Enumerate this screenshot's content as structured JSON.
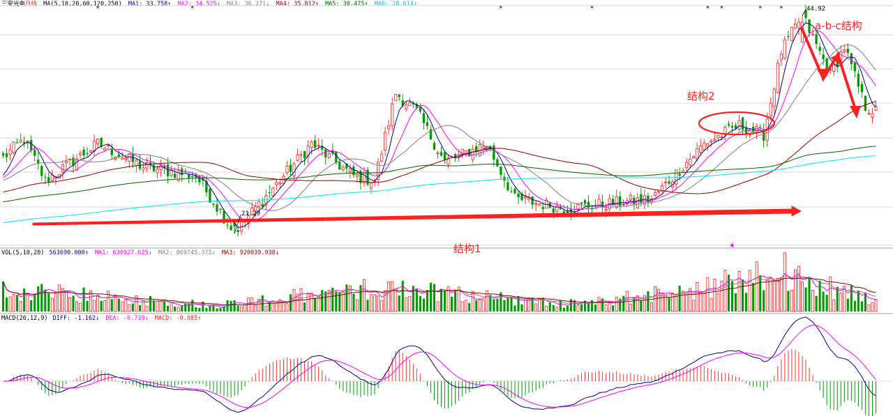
{
  "colors": {
    "up": "#ff3030",
    "down": "#009900",
    "ma1": "#00008b",
    "ma2": "#ff00ff",
    "ma3": "#808080",
    "ma4": "#8b0000",
    "ma5": "#006400",
    "ma6": "#00e5ee",
    "diff": "#00008b",
    "dea": "#ff00ff",
    "annotation": "#ff2020"
  },
  "price_header": {
    "name": "三安光电",
    "period": "日线",
    "ma_params": "MA(5,10,20,60,120,250)",
    "ma1": "MA1: 33.758↑",
    "ma2": "MA2: 34.525↓",
    "ma3": "MA3: 36.271↓",
    "ma4": "MA4: 35.812↑",
    "ma5": "MA5: 30.475↑",
    "ma6": "MA6: 28.614↑"
  },
  "vol_header": {
    "params": "VOL(5,10,20)",
    "vol": "563690.000↑",
    "ma1": "MA1: 639927.625↓",
    "ma2": "MA2: 869745.375↓",
    "ma3": "MA3: 920039.938↓"
  },
  "macd_header": {
    "params": "MACD(26,12,9)",
    "diff": "DIFF: -1.162↓",
    "dea": "DEA: -0.719↓",
    "macd": "MACD: -0.885↑"
  },
  "price_labels": {
    "high": "44.92",
    "low": "21.29"
  },
  "annotations": {
    "structure1": "结构1",
    "structure2": "结构2",
    "abc": "a-b-c结构"
  },
  "chart_data": {
    "type": "candlestick",
    "title": "三安光电 日线",
    "bars": 250,
    "ylim": [
      20,
      46
    ],
    "marked_high": 44.92,
    "marked_low": 21.29,
    "moving_averages": {
      "MA1": 33.758,
      "MA2": 34.525,
      "MA3": 36.271,
      "MA4": 35.812,
      "MA5": 30.475,
      "MA6": 28.614
    },
    "close_waypoints": [
      {
        "bar": 0,
        "close": 29.5
      },
      {
        "bar": 6,
        "close": 31.5
      },
      {
        "bar": 12,
        "close": 27.0
      },
      {
        "bar": 27,
        "close": 31.0
      },
      {
        "bar": 40,
        "close": 28.5
      },
      {
        "bar": 55,
        "close": 27.5
      },
      {
        "bar": 66,
        "close": 21.4
      },
      {
        "bar": 80,
        "close": 27.5
      },
      {
        "bar": 88,
        "close": 31.0
      },
      {
        "bar": 100,
        "close": 27.5
      },
      {
        "bar": 106,
        "close": 27.0
      },
      {
        "bar": 112,
        "close": 36.5
      },
      {
        "bar": 118,
        "close": 34.5
      },
      {
        "bar": 126,
        "close": 29.0
      },
      {
        "bar": 138,
        "close": 31.0
      },
      {
        "bar": 146,
        "close": 25.0
      },
      {
        "bar": 160,
        "close": 24.0
      },
      {
        "bar": 185,
        "close": 25.0
      },
      {
        "bar": 200,
        "close": 31.0
      },
      {
        "bar": 210,
        "close": 33.0
      },
      {
        "bar": 217,
        "close": 32.0
      },
      {
        "bar": 222,
        "close": 41.0
      },
      {
        "bar": 228,
        "close": 44.9
      },
      {
        "bar": 236,
        "close": 38.5
      },
      {
        "bar": 240,
        "close": 41.5
      },
      {
        "bar": 246,
        "close": 35.0
      },
      {
        "bar": 249,
        "close": 34.5
      }
    ],
    "volume_ylim": [
      0,
      2600000
    ],
    "volume_waypoints": [
      {
        "bar": 0,
        "vol": 1000000
      },
      {
        "bar": 60,
        "vol": 300000
      },
      {
        "bar": 110,
        "vol": 1100000
      },
      {
        "bar": 140,
        "vol": 650000
      },
      {
        "bar": 160,
        "vol": 350000
      },
      {
        "bar": 200,
        "vol": 1000000
      },
      {
        "bar": 220,
        "vol": 2000000
      },
      {
        "bar": 235,
        "vol": 1100000
      },
      {
        "bar": 249,
        "vol": 563690
      }
    ],
    "macd": {
      "ylim": [
        -2.2,
        3.5
      ],
      "last": {
        "diff": -1.162,
        "dea": -0.719,
        "macd": -0.885
      }
    },
    "signal_marker_bars": [
      27,
      54,
      142,
      168,
      201,
      205,
      216,
      222
    ]
  }
}
